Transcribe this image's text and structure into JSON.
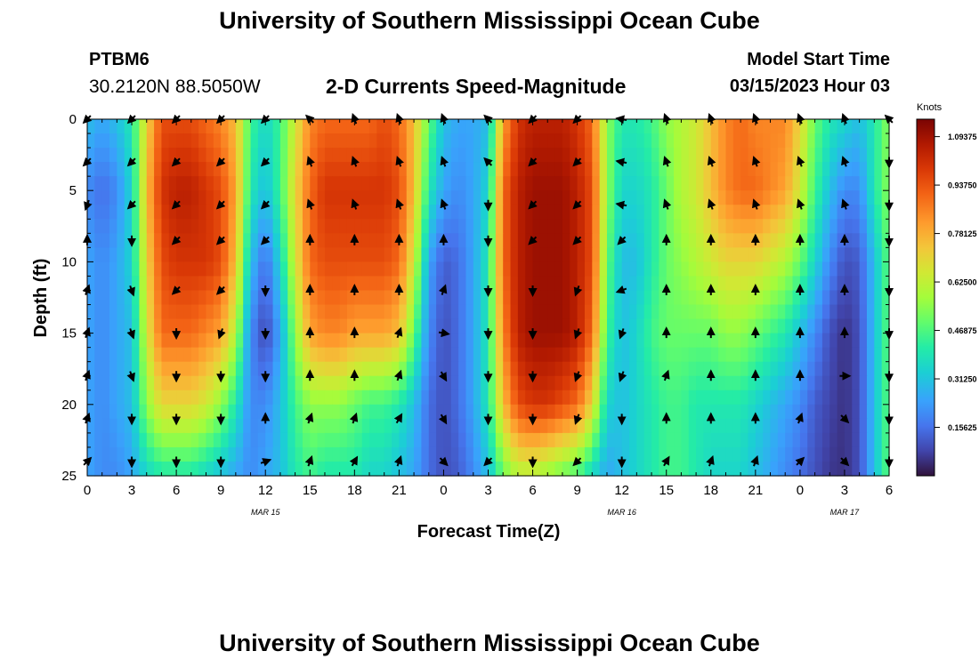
{
  "header": {
    "title": "University of Southern Mississippi Ocean Cube",
    "station_id": "PTBM6",
    "station_coords": "30.2120N  88.5050W",
    "chart_title": "2-D Currents Speed-Magnitude",
    "model_label": "Model Start Time",
    "model_time": "03/15/2023 Hour 03"
  },
  "footer": {
    "title": "University of Southern Mississippi Ocean Cube"
  },
  "chart_data": {
    "type": "heatmap",
    "title": "2-D Currents Speed-Magnitude",
    "xlabel": "Forecast Time(Z)",
    "ylabel": "Depth (ft)",
    "x_range_hours": [
      0,
      54
    ],
    "x_tick_hours": [
      0,
      3,
      6,
      9,
      12,
      15,
      18,
      21,
      24,
      27,
      30,
      33,
      36,
      39,
      42,
      45,
      48,
      51,
      54
    ],
    "x_tick_labels": [
      "0",
      "3",
      "6",
      "9",
      "12",
      "15",
      "18",
      "21",
      "0",
      "3",
      "6",
      "9",
      "12",
      "15",
      "18",
      "21",
      "0",
      "3",
      "6"
    ],
    "date_labels": [
      {
        "hour": 12,
        "text": "MAR 15"
      },
      {
        "hour": 36,
        "text": "MAR 16"
      },
      {
        "hour": 51,
        "text": "MAR 17"
      }
    ],
    "y_range_ft": [
      0,
      25
    ],
    "y_ticks": [
      0,
      5,
      10,
      15,
      20,
      25
    ],
    "y_tick_labels": [
      "0",
      "5",
      "10",
      "15",
      "20",
      "25"
    ],
    "colorbar": {
      "unit": "Knots",
      "range": [
        0,
        1.15
      ],
      "ticks": [
        0.15625,
        0.3125,
        0.46875,
        0.625,
        0.78125,
        0.9375,
        1.09375
      ],
      "tick_labels": [
        "0.15625",
        "0.31250",
        "0.46875",
        "0.62500",
        "0.78125",
        "0.93750",
        "1.09375"
      ]
    },
    "speed_hours": [
      0,
      1,
      2,
      3,
      4,
      5,
      6,
      7,
      8,
      9,
      10,
      11,
      12,
      13,
      14,
      15,
      16,
      17,
      18,
      19,
      20,
      21,
      22,
      23,
      24,
      25,
      26,
      27,
      28,
      29,
      30,
      31,
      32,
      33,
      34,
      35,
      36,
      37,
      38,
      39,
      40,
      41,
      42,
      43,
      44,
      45,
      46,
      47,
      48,
      49,
      50,
      51,
      52,
      53,
      54
    ],
    "speed_depths_ft": [
      0,
      5,
      10,
      15,
      20,
      25
    ],
    "speed_knots": [
      [
        0.3,
        0.25,
        0.3,
        0.4,
        0.7,
        0.95,
        0.95,
        0.95,
        0.9,
        0.85,
        0.75,
        0.45,
        0.35,
        0.45,
        0.65,
        0.85,
        0.9,
        0.9,
        0.9,
        0.9,
        0.95,
        0.9,
        0.75,
        0.5,
        0.3,
        0.25,
        0.25,
        0.3,
        0.8,
        1.0,
        1.05,
        1.05,
        1.05,
        1.0,
        0.9,
        0.55,
        0.4,
        0.4,
        0.45,
        0.55,
        0.6,
        0.65,
        0.75,
        0.85,
        0.9,
        0.85,
        0.85,
        0.85,
        0.7,
        0.5,
        0.4,
        0.35,
        0.3,
        0.4,
        0.55
      ],
      [
        0.2,
        0.15,
        0.2,
        0.35,
        0.75,
        1.0,
        1.05,
        1.05,
        1.0,
        0.95,
        0.8,
        0.4,
        0.3,
        0.45,
        0.7,
        0.9,
        1.0,
        1.0,
        1.0,
        1.0,
        1.0,
        0.95,
        0.75,
        0.4,
        0.25,
        0.2,
        0.25,
        0.35,
        0.9,
        1.05,
        1.1,
        1.1,
        1.1,
        1.05,
        0.95,
        0.55,
        0.35,
        0.35,
        0.4,
        0.5,
        0.6,
        0.65,
        0.75,
        0.85,
        0.9,
        0.9,
        0.85,
        0.8,
        0.65,
        0.45,
        0.3,
        0.2,
        0.2,
        0.4,
        0.55
      ],
      [
        0.25,
        0.2,
        0.25,
        0.35,
        0.7,
        0.95,
        1.0,
        1.0,
        1.0,
        0.95,
        0.75,
        0.3,
        0.15,
        0.35,
        0.65,
        0.9,
        0.95,
        0.95,
        0.95,
        0.95,
        0.95,
        0.9,
        0.65,
        0.25,
        0.12,
        0.15,
        0.25,
        0.4,
        0.9,
        1.05,
        1.1,
        1.1,
        1.1,
        1.05,
        0.95,
        0.5,
        0.3,
        0.3,
        0.4,
        0.5,
        0.55,
        0.6,
        0.65,
        0.7,
        0.7,
        0.7,
        0.65,
        0.6,
        0.5,
        0.35,
        0.2,
        0.1,
        0.12,
        0.3,
        0.5
      ],
      [
        0.25,
        0.2,
        0.25,
        0.3,
        0.65,
        0.9,
        0.9,
        0.9,
        0.85,
        0.8,
        0.6,
        0.2,
        0.08,
        0.25,
        0.55,
        0.8,
        0.85,
        0.85,
        0.8,
        0.8,
        0.8,
        0.75,
        0.5,
        0.2,
        0.1,
        0.15,
        0.25,
        0.4,
        0.85,
        1.05,
        1.1,
        1.1,
        1.1,
        1.05,
        0.9,
        0.45,
        0.3,
        0.35,
        0.45,
        0.5,
        0.5,
        0.5,
        0.5,
        0.55,
        0.55,
        0.5,
        0.45,
        0.4,
        0.3,
        0.2,
        0.1,
        0.05,
        0.1,
        0.3,
        0.5
      ],
      [
        0.25,
        0.2,
        0.25,
        0.3,
        0.55,
        0.7,
        0.7,
        0.7,
        0.65,
        0.55,
        0.4,
        0.2,
        0.2,
        0.3,
        0.45,
        0.55,
        0.55,
        0.55,
        0.5,
        0.45,
        0.45,
        0.4,
        0.3,
        0.15,
        0.1,
        0.15,
        0.25,
        0.4,
        0.75,
        0.95,
        1.0,
        1.0,
        0.95,
        0.9,
        0.7,
        0.35,
        0.3,
        0.35,
        0.4,
        0.45,
        0.45,
        0.4,
        0.4,
        0.4,
        0.4,
        0.35,
        0.3,
        0.25,
        0.2,
        0.12,
        0.08,
        0.05,
        0.1,
        0.3,
        0.5
      ],
      [
        0.25,
        0.2,
        0.2,
        0.25,
        0.35,
        0.4,
        0.4,
        0.4,
        0.35,
        0.3,
        0.25,
        0.2,
        0.25,
        0.3,
        0.4,
        0.45,
        0.4,
        0.4,
        0.4,
        0.35,
        0.35,
        0.3,
        0.25,
        0.15,
        0.1,
        0.12,
        0.2,
        0.3,
        0.5,
        0.6,
        0.6,
        0.55,
        0.5,
        0.45,
        0.35,
        0.25,
        0.3,
        0.35,
        0.4,
        0.45,
        0.45,
        0.4,
        0.35,
        0.35,
        0.35,
        0.3,
        0.25,
        0.2,
        0.15,
        0.1,
        0.06,
        0.05,
        0.1,
        0.3,
        0.5
      ]
    ],
    "arrow_hours": [
      0,
      3,
      6,
      9,
      12,
      15,
      18,
      21,
      24,
      27,
      30,
      33,
      36,
      39,
      42,
      45,
      48,
      51,
      54
    ],
    "arrow_depths_ft": [
      0,
      3,
      6,
      8.5,
      12,
      15,
      18,
      21,
      24
    ],
    "arrow_direction_deg": [
      [
        225,
        225,
        225,
        225,
        225,
        315,
        340,
        340,
        340,
        315,
        225,
        225,
        280,
        340,
        340,
        340,
        340,
        340,
        315
      ],
      [
        225,
        225,
        225,
        225,
        225,
        340,
        340,
        340,
        340,
        315,
        225,
        225,
        280,
        340,
        340,
        340,
        340,
        340,
        180
      ],
      [
        200,
        225,
        225,
        225,
        225,
        340,
        340,
        340,
        340,
        180,
        225,
        225,
        280,
        340,
        340,
        340,
        340,
        340,
        180
      ],
      [
        0,
        180,
        225,
        225,
        225,
        0,
        0,
        0,
        0,
        180,
        225,
        225,
        225,
        0,
        0,
        0,
        0,
        0,
        180
      ],
      [
        20,
        160,
        225,
        225,
        180,
        0,
        0,
        0,
        20,
        180,
        180,
        200,
        250,
        0,
        0,
        0,
        0,
        0,
        180
      ],
      [
        20,
        160,
        180,
        200,
        180,
        0,
        0,
        20,
        100,
        180,
        180,
        200,
        200,
        0,
        0,
        0,
        0,
        0,
        180
      ],
      [
        20,
        160,
        180,
        180,
        180,
        0,
        0,
        20,
        150,
        180,
        180,
        200,
        200,
        20,
        0,
        0,
        0,
        90,
        180
      ],
      [
        20,
        180,
        180,
        180,
        0,
        20,
        20,
        30,
        150,
        180,
        180,
        200,
        180,
        0,
        0,
        0,
        20,
        135,
        180
      ],
      [
        45,
        180,
        180,
        180,
        70,
        20,
        30,
        20,
        135,
        225,
        180,
        225,
        180,
        30,
        20,
        20,
        45,
        135,
        180
      ]
    ]
  }
}
